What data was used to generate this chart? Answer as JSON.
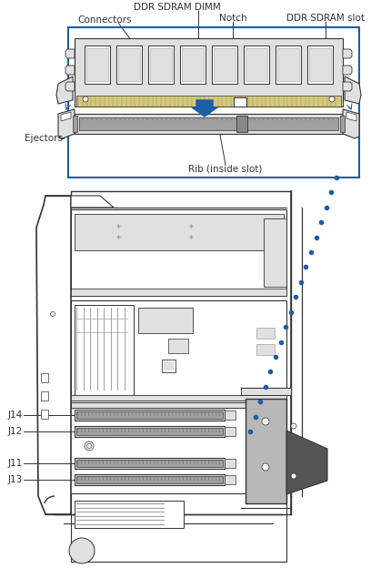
{
  "bg_color": "#ffffff",
  "lc": "#333333",
  "bc": "#1a5fa8",
  "gc": "#b8b8b8",
  "lgc": "#e0e0e0",
  "mgc": "#a0a0a0",
  "dgc": "#888888",
  "fs": 7.5,
  "labels": {
    "ddr_sdram_dimm": "DDR SDRAM DIMM",
    "connectors": "Connectors",
    "notch": "Notch",
    "ddr_sdram_slot": "DDR SDRAM slot",
    "ejectors": "Ejectors",
    "rib": "Rib (inside slot)",
    "j14": "J14",
    "j12": "J12",
    "j11": "J11",
    "j13": "J13"
  }
}
